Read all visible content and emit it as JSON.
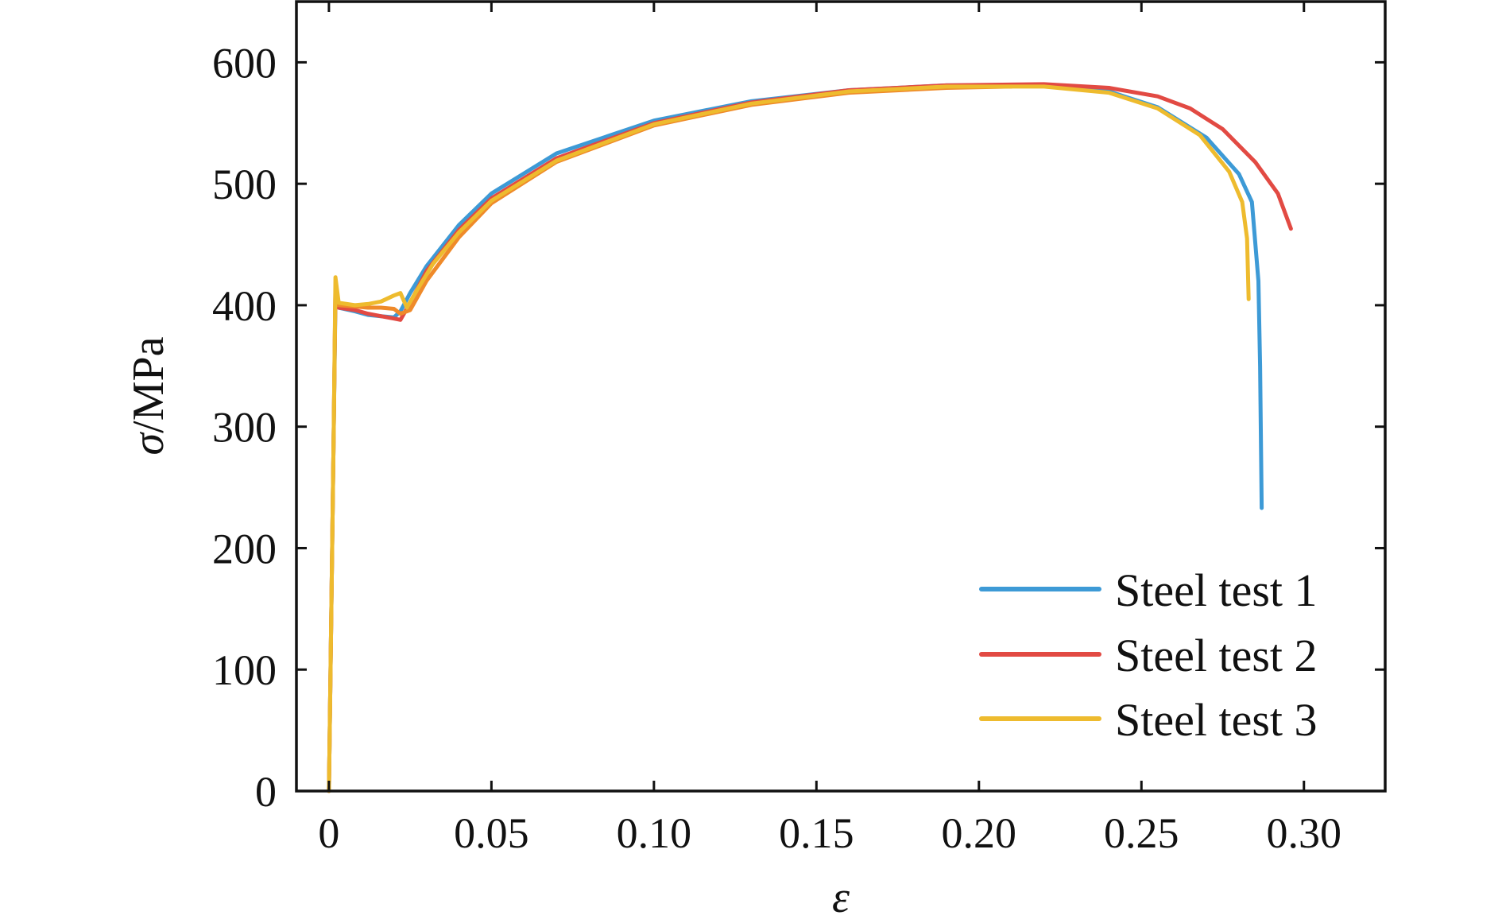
{
  "chart_data": {
    "type": "line",
    "xlabel": "ε",
    "ylabel_symbol": "σ",
    "ylabel_unit": "/MPa",
    "xlim": [
      -0.01,
      0.325
    ],
    "ylim": [
      0,
      650
    ],
    "x_ticks": [
      0,
      0.05,
      0.1,
      0.15,
      0.2,
      0.25,
      0.3
    ],
    "x_tick_labels": [
      "0",
      "0.05",
      "0.10",
      "0.15",
      "0.20",
      "0.25",
      "0.30"
    ],
    "y_ticks": [
      0,
      100,
      200,
      300,
      400,
      500,
      600
    ],
    "y_tick_labels": [
      "0",
      "100",
      "200",
      "300",
      "400",
      "500",
      "600"
    ],
    "grid": false,
    "legend_position": "bottom-right",
    "series": [
      {
        "name": "Steel test 1",
        "color": "#3d9ad6",
        "points": [
          [
            0.0,
            0
          ],
          [
            0.0015,
            300
          ],
          [
            0.002,
            405
          ],
          [
            0.003,
            398
          ],
          [
            0.008,
            395
          ],
          [
            0.012,
            392
          ],
          [
            0.016,
            391
          ],
          [
            0.02,
            390
          ],
          [
            0.022,
            395
          ],
          [
            0.025,
            410
          ],
          [
            0.03,
            432
          ],
          [
            0.04,
            466
          ],
          [
            0.05,
            492
          ],
          [
            0.07,
            525
          ],
          [
            0.1,
            552
          ],
          [
            0.13,
            568
          ],
          [
            0.16,
            577
          ],
          [
            0.19,
            581
          ],
          [
            0.22,
            581
          ],
          [
            0.24,
            576
          ],
          [
            0.255,
            563
          ],
          [
            0.27,
            538
          ],
          [
            0.28,
            508
          ],
          [
            0.284,
            485
          ],
          [
            0.286,
            420
          ],
          [
            0.2865,
            350
          ],
          [
            0.287,
            233
          ]
        ]
      },
      {
        "name": "Steel test 2",
        "color": "#e24a43",
        "points": [
          [
            0.0,
            0
          ],
          [
            0.0015,
            300
          ],
          [
            0.002,
            415
          ],
          [
            0.003,
            398
          ],
          [
            0.008,
            396
          ],
          [
            0.012,
            393
          ],
          [
            0.016,
            391
          ],
          [
            0.02,
            389
          ],
          [
            0.022,
            388
          ],
          [
            0.025,
            402
          ],
          [
            0.03,
            428
          ],
          [
            0.04,
            462
          ],
          [
            0.05,
            488
          ],
          [
            0.07,
            521
          ],
          [
            0.1,
            550
          ],
          [
            0.13,
            567
          ],
          [
            0.16,
            577
          ],
          [
            0.19,
            581
          ],
          [
            0.22,
            582
          ],
          [
            0.24,
            579
          ],
          [
            0.255,
            572
          ],
          [
            0.265,
            562
          ],
          [
            0.275,
            545
          ],
          [
            0.285,
            518
          ],
          [
            0.292,
            492
          ],
          [
            0.296,
            463
          ]
        ]
      },
      {
        "name": "Steel test 3",
        "color": "#eebb2e",
        "points": [
          [
            0.0,
            0
          ],
          [
            0.0015,
            300
          ],
          [
            0.002,
            423
          ],
          [
            0.003,
            402
          ],
          [
            0.008,
            400
          ],
          [
            0.012,
            401
          ],
          [
            0.016,
            403
          ],
          [
            0.02,
            408
          ],
          [
            0.022,
            410
          ],
          [
            0.024,
            398
          ],
          [
            0.027,
            412
          ],
          [
            0.032,
            434
          ],
          [
            0.04,
            460
          ],
          [
            0.05,
            486
          ],
          [
            0.07,
            519
          ],
          [
            0.1,
            549
          ],
          [
            0.13,
            566
          ],
          [
            0.16,
            576
          ],
          [
            0.19,
            580
          ],
          [
            0.22,
            580
          ],
          [
            0.24,
            575
          ],
          [
            0.255,
            562
          ],
          [
            0.268,
            540
          ],
          [
            0.277,
            510
          ],
          [
            0.281,
            485
          ],
          [
            0.2825,
            455
          ],
          [
            0.283,
            405
          ]
        ]
      },
      {
        "name": "",
        "color": "#ef8a2a",
        "points": [
          [
            0.0,
            0
          ],
          [
            0.0015,
            300
          ],
          [
            0.002,
            412
          ],
          [
            0.003,
            400
          ],
          [
            0.008,
            399
          ],
          [
            0.012,
            398
          ],
          [
            0.016,
            398
          ],
          [
            0.02,
            397
          ],
          [
            0.022,
            393
          ],
          [
            0.025,
            396
          ],
          [
            0.03,
            420
          ],
          [
            0.04,
            456
          ],
          [
            0.05,
            484
          ],
          [
            0.07,
            518
          ],
          [
            0.1,
            548
          ],
          [
            0.13,
            565
          ],
          [
            0.16,
            575
          ],
          [
            0.19,
            579
          ],
          [
            0.21,
            580
          ]
        ]
      }
    ]
  }
}
